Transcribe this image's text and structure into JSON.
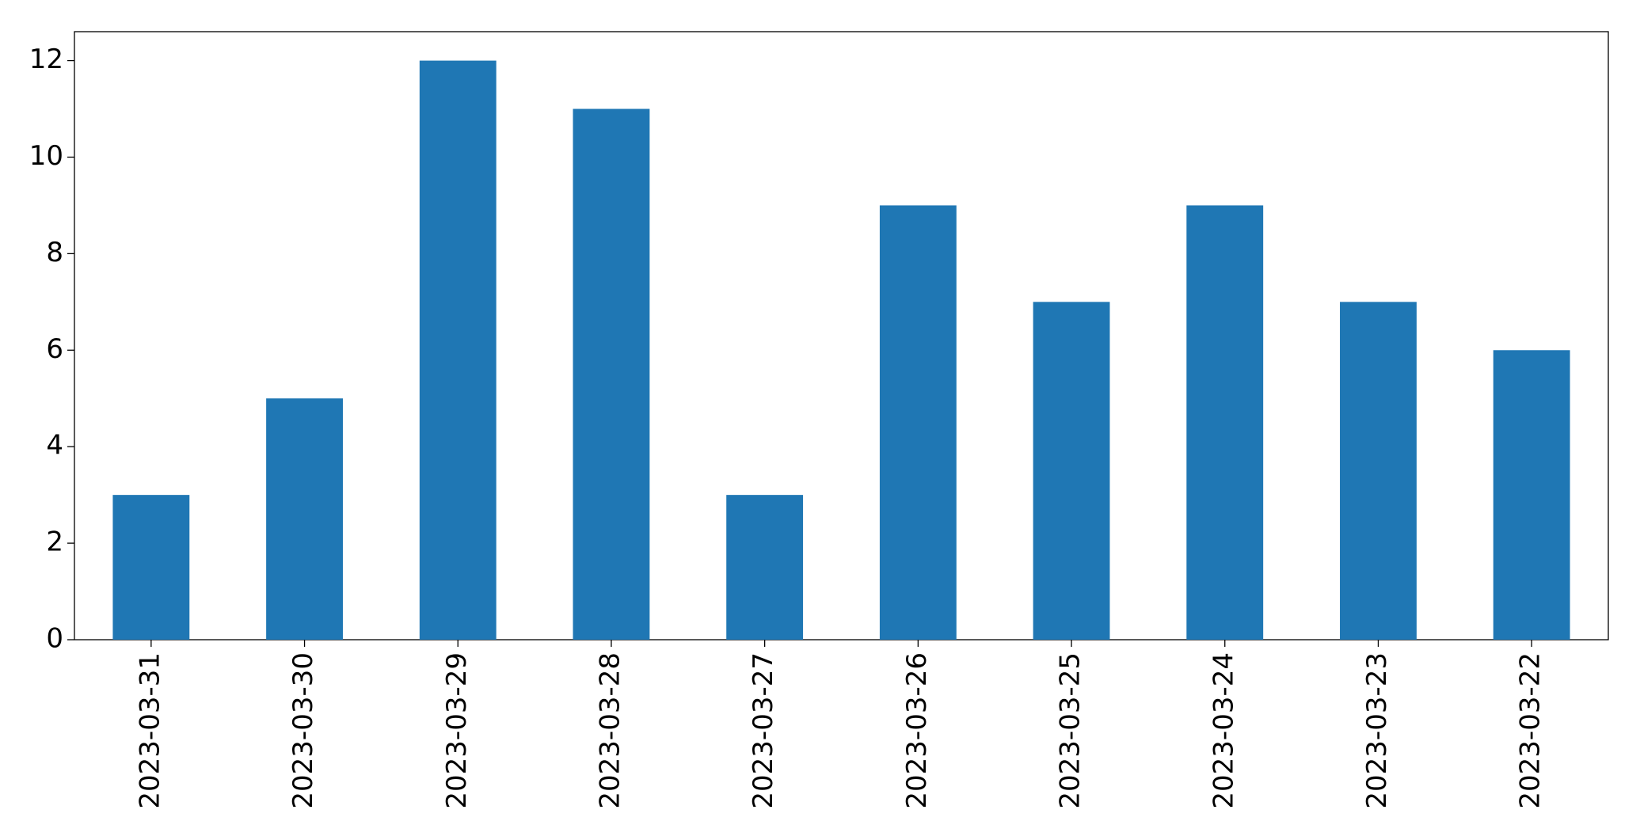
{
  "chart_data": {
    "type": "bar",
    "categories": [
      "2023-03-31",
      "2023-03-30",
      "2023-03-29",
      "2023-03-28",
      "2023-03-27",
      "2023-03-26",
      "2023-03-25",
      "2023-03-24",
      "2023-03-23",
      "2023-03-22"
    ],
    "values": [
      3,
      5,
      12,
      11,
      3,
      9,
      7,
      9,
      7,
      6
    ],
    "color": "#1f77b4",
    "ylim": [
      0,
      12.6
    ],
    "yticks": [
      0,
      2,
      4,
      6,
      8,
      10,
      12
    ],
    "grid": false
  }
}
